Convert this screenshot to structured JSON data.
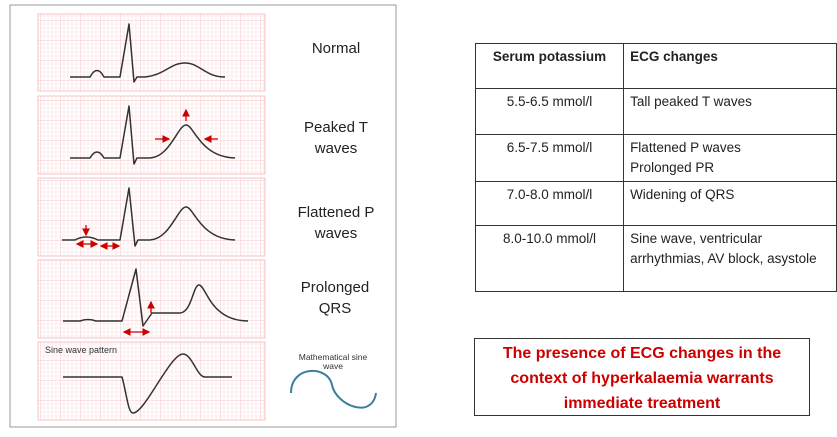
{
  "ecg_panels": [
    {
      "label": "Normal"
    },
    {
      "label": "Peaked T waves"
    },
    {
      "label": "Flattened P waves"
    },
    {
      "label": "Prolonged QRS"
    },
    {
      "label": "Sine wave pattern"
    }
  ],
  "sine_label": "Mathematical sine wave",
  "colors": {
    "trace": "#333333",
    "grid": "#f4b8b8",
    "arrow": "#cc0000",
    "sine": "#3a7f9f",
    "note": "#cc0000"
  },
  "table": {
    "headers": [
      "Serum potassium",
      "ECG changes"
    ],
    "rows": [
      {
        "k": "5.5-6.5 mmol/l",
        "v": "Tall peaked T waves"
      },
      {
        "k": "6.5-7.5 mmol/l",
        "v": "Flattened P waves Prolonged PR"
      },
      {
        "k": "7.0-8.0 mmol/l",
        "v": "Widening of QRS"
      },
      {
        "k": "8.0-10.0 mmol/l",
        "v": "Sine wave, ventricular arrhythmias, AV block, asystole"
      }
    ]
  },
  "note": "The presence of ECG changes in the context of hyperkalaemia warrants immediate treatment"
}
